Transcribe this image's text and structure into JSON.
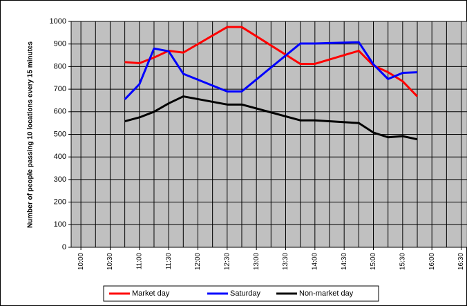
{
  "chart_data": {
    "type": "line",
    "y_label": "Number of people passing 10 locations every 15 minutes",
    "x": [
      "10:45",
      "11:00",
      "11:15",
      "11:30",
      "11:45",
      "12:30",
      "12:45",
      "13:45",
      "14:00",
      "14:45",
      "15:00",
      "15:15",
      "15:30",
      "15:45"
    ],
    "series": [
      {
        "name": "Market day",
        "color": "#ff0000",
        "values": [
          820,
          815,
          840,
          870,
          862,
          975,
          975,
          812,
          812,
          870,
          805,
          775,
          735,
          668
        ]
      },
      {
        "name": "Saturday",
        "color": "#0000ff",
        "values": [
          655,
          722,
          880,
          868,
          768,
          690,
          690,
          902,
          902,
          908,
          810,
          745,
          772,
          775
        ]
      },
      {
        "name": "Non-market day",
        "color": "#000000",
        "values": [
          558,
          575,
          600,
          637,
          668,
          632,
          632,
          562,
          562,
          550,
          508,
          487,
          492,
          478
        ]
      }
    ],
    "xlim": [
      "09:50",
      "16:36"
    ],
    "xticks": [
      "10:00",
      "10:30",
      "11:00",
      "11:30",
      "12:00",
      "12:30",
      "13:00",
      "13:30",
      "14:00",
      "14:30",
      "15:00",
      "15:30",
      "16:00",
      "16:30"
    ],
    "ylim": [
      0,
      1000
    ],
    "yticks": [
      0,
      100,
      200,
      300,
      400,
      500,
      600,
      700,
      800,
      900,
      1000
    ],
    "grid": true,
    "legend": "bottom"
  }
}
